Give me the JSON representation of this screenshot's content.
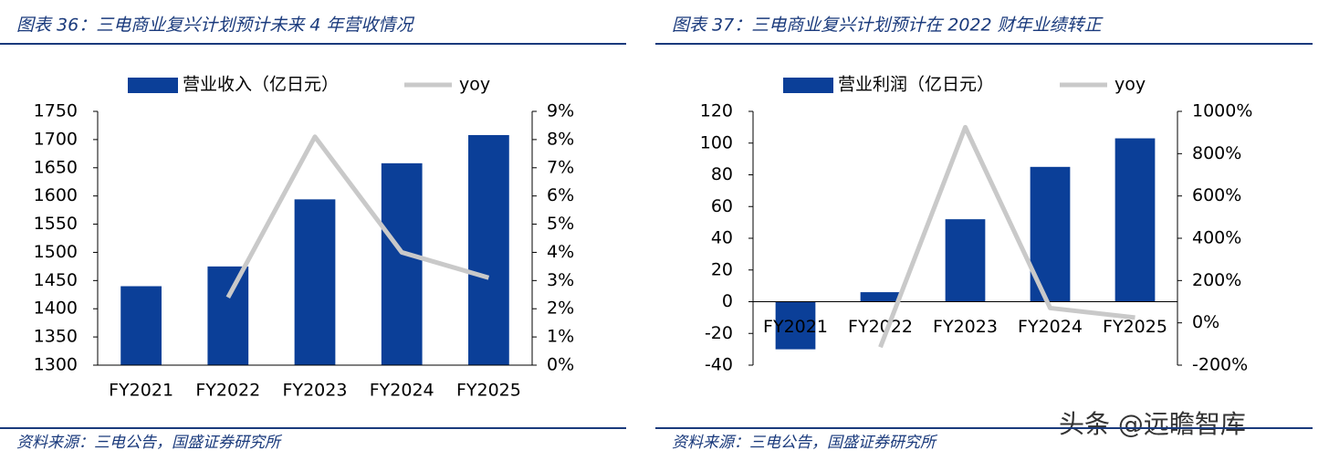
{
  "chart_data": [
    {
      "type": "bar",
      "title": "图表 36：三电商业复兴计划预计未来 4 年营收情况",
      "categories": [
        "FY2021",
        "FY2022",
        "FY2023",
        "FY2024",
        "FY2025"
      ],
      "series": [
        {
          "name": "营业收入（亿日元）",
          "color": "#0b3f98",
          "values": [
            1440,
            1475,
            1594,
            1658,
            1708
          ]
        },
        {
          "name": "yoy",
          "type": "line",
          "axis": "y2",
          "color": "#c9c9c9",
          "values": [
            null,
            2.4,
            8.1,
            4.0,
            3.1
          ]
        }
      ],
      "ylim": [
        1300,
        1750
      ],
      "yticks": [
        1300,
        1350,
        1400,
        1450,
        1500,
        1550,
        1600,
        1650,
        1700,
        1750
      ],
      "y2lim": [
        0,
        9
      ],
      "y2ticks": [
        {
          "value": 0,
          "label": "0%"
        },
        {
          "value": 1,
          "label": "1%"
        },
        {
          "value": 2,
          "label": "2%"
        },
        {
          "value": 3,
          "label": "3%"
        },
        {
          "value": 4,
          "label": "4%"
        },
        {
          "value": 5,
          "label": "5%"
        },
        {
          "value": 6,
          "label": "6%"
        },
        {
          "value": 7,
          "label": "7%"
        },
        {
          "value": 8,
          "label": "8%"
        },
        {
          "value": 9,
          "label": "9%"
        }
      ],
      "grid": false,
      "legend": "top",
      "source": "资料来源：三电公告，国盛证券研究所"
    },
    {
      "type": "bar",
      "title": "图表 37：三电商业复兴计划预计在 2022 财年业绩转正",
      "categories": [
        "FY2021",
        "FY2022",
        "FY2023",
        "FY2024",
        "FY2025"
      ],
      "series": [
        {
          "name": "营业利润（亿日元）",
          "color": "#0b3f98",
          "values": [
            -30,
            6,
            52,
            85,
            103
          ]
        },
        {
          "name": "yoy",
          "type": "line",
          "axis": "y2",
          "color": "#c9c9c9",
          "values": [
            null,
            -115,
            925,
            70,
            25
          ]
        }
      ],
      "ylim": [
        -40,
        120
      ],
      "yticks": [
        -40,
        -20,
        0,
        20,
        40,
        60,
        80,
        100,
        120
      ],
      "y2lim": [
        -200,
        1000
      ],
      "y2ticks": [
        {
          "value": -200,
          "label": "-200%"
        },
        {
          "value": 0,
          "label": "0%"
        },
        {
          "value": 200,
          "label": "200%"
        },
        {
          "value": 400,
          "label": "400%"
        },
        {
          "value": 600,
          "label": "600%"
        },
        {
          "value": 800,
          "label": "800%"
        },
        {
          "value": 1000,
          "label": "1000%"
        }
      ],
      "grid": false,
      "legend": "top",
      "source": "资料来源：三电公告，国盛证券研究所"
    }
  ],
  "watermark": "头条 @远瞻智库"
}
